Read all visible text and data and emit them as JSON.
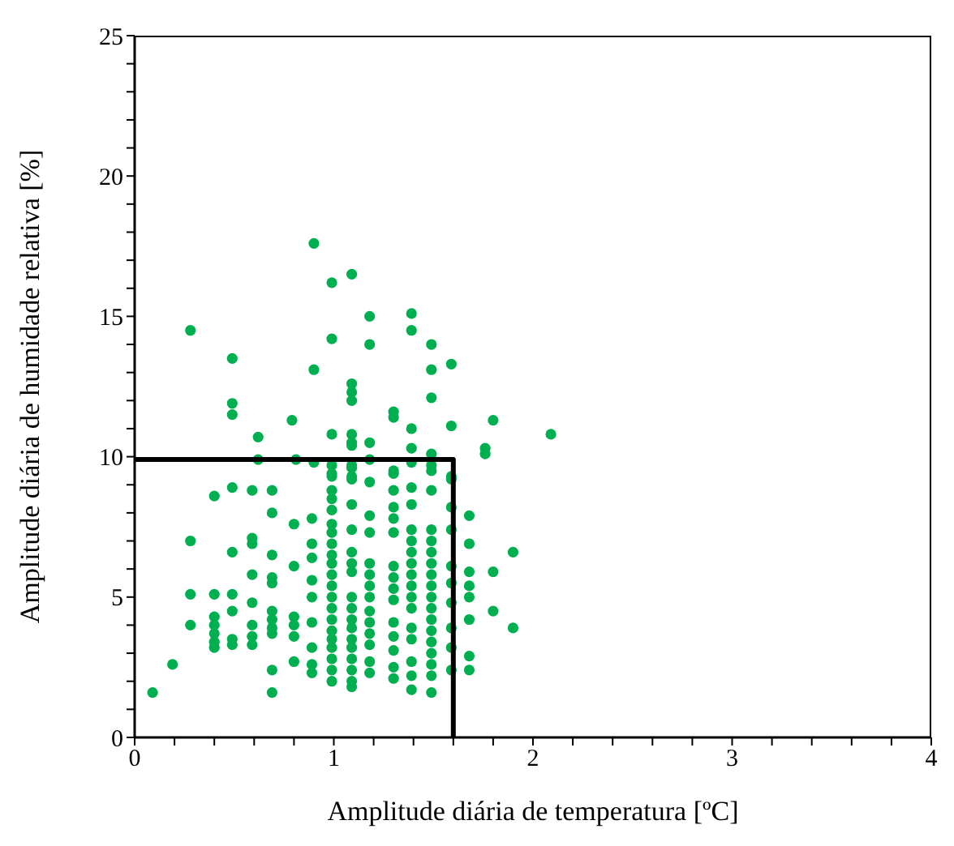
{
  "chart_data": {
    "type": "scatter",
    "xlabel": "Amplitude diária de temperatura [ºC]",
    "ylabel": "Amplitude diária de humidade relativa [%]",
    "xlim": [
      0,
      4
    ],
    "ylim": [
      0,
      25
    ],
    "xticks": [
      0,
      {
        "value": 0.2,
        "label": null
      },
      {
        "value": 0.4,
        "label": null
      },
      {
        "value": 0.6,
        "label": null
      },
      {
        "value": 0.8,
        "label": null
      },
      1,
      {
        "value": 1.2,
        "label": null
      },
      {
        "value": 1.4,
        "label": null
      },
      {
        "value": 1.6,
        "label": null
      },
      {
        "value": 1.8,
        "label": null
      },
      2,
      {
        "value": 2.2,
        "label": null
      },
      {
        "value": 2.4,
        "label": null
      },
      {
        "value": 2.6,
        "label": null
      },
      {
        "value": 2.8,
        "label": null
      },
      3,
      {
        "value": 3.2,
        "label": null
      },
      {
        "value": 3.4,
        "label": null
      },
      {
        "value": 3.6,
        "label": null
      },
      {
        "value": 3.8,
        "label": null
      },
      4
    ],
    "yticks": [
      0,
      {
        "value": 1,
        "label": null
      },
      {
        "value": 2,
        "label": null
      },
      {
        "value": 3,
        "label": null
      },
      {
        "value": 4,
        "label": null
      },
      5,
      {
        "value": 6,
        "label": null
      },
      {
        "value": 7,
        "label": null
      },
      {
        "value": 8,
        "label": null
      },
      {
        "value": 9,
        "label": null
      },
      10,
      {
        "value": 11,
        "label": null
      },
      {
        "value": 12,
        "label": null
      },
      {
        "value": 13,
        "label": null
      },
      {
        "value": 14,
        "label": null
      },
      15,
      {
        "value": 16,
        "label": null
      },
      {
        "value": 17,
        "label": null
      },
      {
        "value": 18,
        "label": null
      },
      {
        "value": 19,
        "label": null
      },
      20,
      {
        "value": 21,
        "label": null
      },
      {
        "value": 22,
        "label": null
      },
      {
        "value": 23,
        "label": null
      },
      {
        "value": 24,
        "label": null
      },
      25
    ],
    "grid": false,
    "legend": false,
    "marker": "circle",
    "series": [
      {
        "color": "#00b050",
        "x": [
          0.9,
          0.99,
          1.09,
          0.28,
          1.18,
          1.39,
          1.39,
          0.99,
          1.18,
          1.49,
          0.49,
          0.9,
          1.49,
          1.59,
          1.09,
          1.09,
          1.09,
          0.49,
          0.49,
          1.49,
          1.3,
          1.3,
          0.79,
          0.99,
          1.09,
          1.09,
          1.09,
          0.62,
          1.39,
          1.59,
          1.8,
          2.09,
          1.18,
          1.39,
          1.49,
          1.76,
          1.76,
          0.62,
          0.81,
          0.9,
          0.99,
          1.09,
          1.09,
          1.18,
          1.3,
          1.39,
          1.49,
          1.59,
          0.09,
          0.19,
          0.28,
          0.28,
          0.28,
          0.4,
          0.4,
          0.4,
          0.4,
          0.4,
          0.4,
          0.4,
          0.49,
          0.49,
          0.49,
          0.49,
          0.49,
          0.49,
          0.59,
          0.59,
          0.59,
          0.59,
          0.59,
          0.59,
          0.59,
          0.59,
          0.69,
          0.69,
          0.69,
          0.69,
          0.69,
          0.69,
          0.69,
          0.69,
          0.69,
          0.69,
          0.69,
          0.8,
          0.8,
          0.8,
          0.8,
          0.8,
          0.8,
          0.89,
          0.89,
          0.89,
          0.89,
          0.89,
          0.89,
          0.89,
          0.89,
          0.89,
          0.99,
          0.99,
          0.99,
          0.99,
          0.99,
          0.99,
          0.99,
          0.99,
          0.99,
          0.99,
          0.99,
          0.99,
          0.99,
          0.99,
          0.99,
          0.99,
          0.99,
          0.99,
          0.99,
          0.99,
          0.99,
          1.09,
          1.09,
          1.09,
          1.09,
          1.09,
          1.09,
          1.09,
          1.09,
          1.09,
          1.09,
          1.09,
          1.09,
          1.09,
          1.09,
          1.09,
          1.09,
          1.09,
          1.18,
          1.18,
          1.18,
          1.18,
          1.18,
          1.18,
          1.18,
          1.18,
          1.18,
          1.18,
          1.18,
          1.18,
          1.18,
          1.3,
          1.3,
          1.3,
          1.3,
          1.3,
          1.3,
          1.3,
          1.3,
          1.3,
          1.3,
          1.3,
          1.3,
          1.3,
          1.3,
          1.39,
          1.39,
          1.39,
          1.39,
          1.39,
          1.39,
          1.39,
          1.39,
          1.39,
          1.39,
          1.39,
          1.39,
          1.39,
          1.39,
          1.39,
          1.49,
          1.49,
          1.49,
          1.49,
          1.49,
          1.49,
          1.49,
          1.49,
          1.49,
          1.49,
          1.49,
          1.49,
          1.49,
          1.49,
          1.49,
          1.49,
          1.49,
          1.59,
          1.59,
          1.59,
          1.59,
          1.59,
          1.59,
          1.59,
          1.59,
          1.59,
          1.68,
          1.68,
          1.68,
          1.68,
          1.68,
          1.68,
          1.68,
          1.68,
          1.8,
          1.8,
          1.9,
          1.9
        ],
        "values": [
          17.6,
          16.2,
          16.5,
          14.5,
          15.0,
          15.1,
          14.5,
          14.2,
          14.0,
          14.0,
          13.5,
          13.1,
          13.1,
          13.3,
          12.6,
          12.3,
          12.0,
          11.9,
          11.5,
          12.1,
          11.6,
          11.4,
          11.3,
          10.8,
          10.8,
          10.5,
          10.4,
          10.7,
          11.0,
          11.1,
          11.3,
          10.8,
          10.5,
          10.3,
          10.1,
          10.3,
          10.1,
          9.9,
          9.9,
          9.8,
          9.4,
          9.7,
          9.3,
          9.9,
          9.5,
          9.8,
          9.7,
          9.3,
          1.6,
          2.6,
          7.0,
          5.1,
          4.0,
          8.6,
          5.1,
          4.3,
          4.0,
          3.7,
          3.4,
          3.2,
          8.9,
          6.6,
          5.1,
          4.5,
          3.5,
          3.3,
          8.8,
          7.1,
          6.9,
          5.8,
          4.8,
          4.0,
          3.6,
          3.3,
          8.8,
          8.0,
          6.5,
          5.7,
          5.5,
          4.5,
          4.2,
          3.9,
          3.7,
          2.4,
          1.6,
          7.6,
          6.1,
          4.3,
          4.0,
          3.6,
          2.7,
          7.8,
          6.9,
          6.4,
          5.6,
          5.0,
          4.1,
          3.2,
          2.6,
          2.3,
          9.7,
          9.3,
          8.8,
          8.5,
          8.1,
          7.6,
          7.3,
          6.9,
          6.5,
          6.2,
          5.8,
          5.4,
          5.0,
          4.6,
          4.2,
          3.8,
          3.5,
          3.2,
          2.8,
          2.4,
          2.0,
          9.6,
          9.2,
          8.3,
          7.4,
          6.6,
          6.2,
          5.9,
          5.0,
          4.6,
          4.2,
          3.9,
          3.5,
          3.2,
          2.8,
          2.4,
          2.0,
          1.8,
          9.1,
          7.9,
          7.3,
          6.2,
          5.8,
          5.4,
          5.0,
          4.5,
          4.1,
          3.7,
          3.3,
          2.7,
          2.3,
          9.4,
          8.8,
          8.2,
          7.8,
          7.3,
          6.1,
          5.7,
          5.3,
          4.9,
          4.1,
          3.6,
          3.1,
          2.5,
          2.1,
          8.9,
          8.3,
          7.4,
          7.0,
          6.6,
          6.2,
          5.8,
          5.4,
          5.0,
          4.6,
          3.9,
          3.5,
          2.7,
          2.2,
          1.7,
          9.5,
          8.8,
          7.4,
          7.0,
          6.6,
          6.2,
          5.8,
          5.4,
          5.0,
          4.6,
          4.2,
          3.8,
          3.4,
          3.0,
          2.6,
          2.2,
          1.6,
          9.2,
          8.2,
          7.4,
          6.1,
          5.5,
          4.8,
          3.9,
          3.2,
          2.4,
          7.9,
          6.9,
          5.9,
          5.4,
          5.0,
          4.2,
          2.9,
          2.4,
          5.9,
          4.5,
          6.6,
          3.9
        ]
      },
      {
        "type": "line",
        "color": "#000000",
        "marker": "none",
        "x": [
          0,
          1.6,
          1.6
        ],
        "values": [
          9.9,
          9.9,
          0
        ]
      }
    ]
  }
}
